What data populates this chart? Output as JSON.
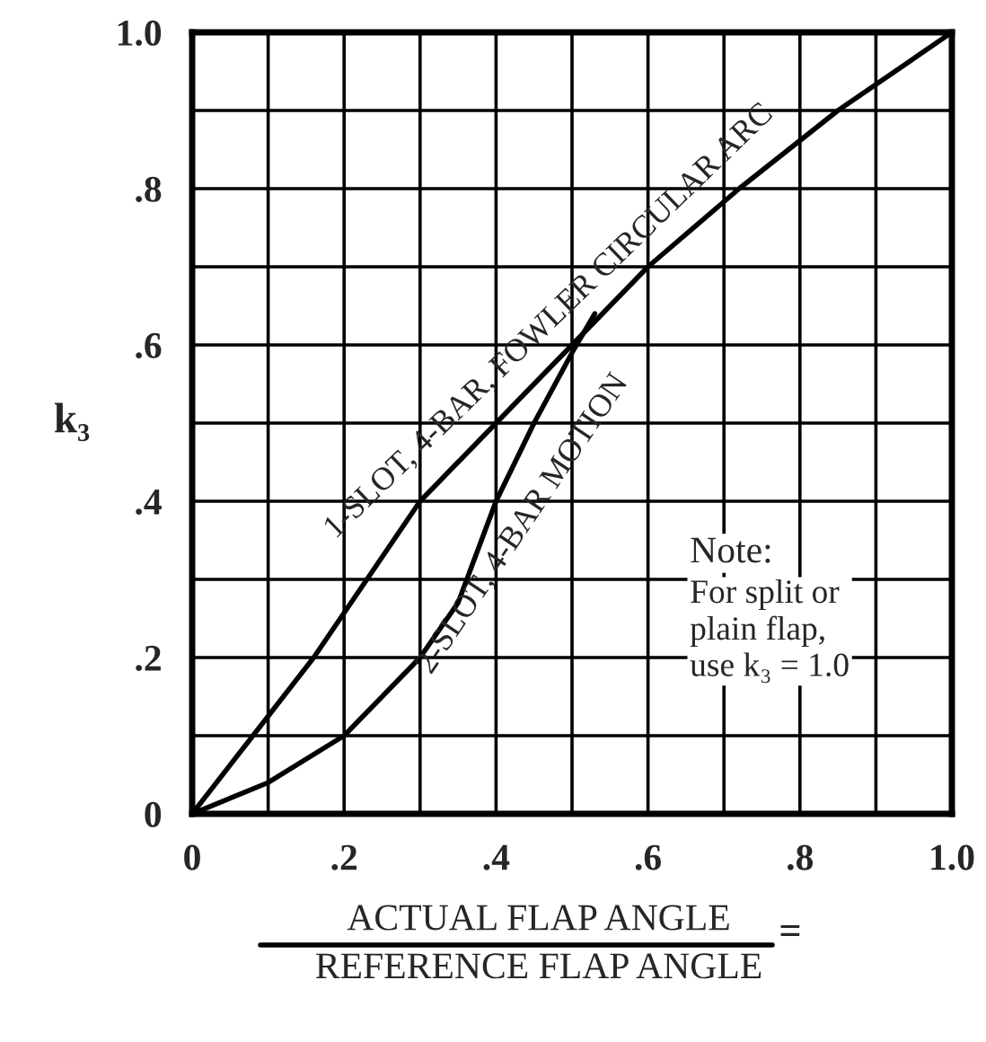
{
  "chart_data": {
    "type": "line",
    "xlabel": "ACTUAL FLAP ANGLE\nREFERENCE FLAP ANGLE",
    "ylabel": "k₃",
    "series": [
      {
        "color": "#000000",
        "x": [
          0,
          0.08,
          0.16,
          0.23,
          0.3,
          0.4,
          0.5,
          0.6,
          0.72,
          0.85,
          1.0
        ],
        "values": [
          0,
          0.1,
          0.2,
          0.3,
          0.4,
          0.5,
          0.6,
          0.7,
          0.8,
          0.9,
          1.0
        ]
      },
      {
        "color": "#000000",
        "x": [
          0,
          0.1,
          0.2,
          0.3,
          0.35,
          0.4,
          0.45,
          0.5,
          0.53
        ],
        "values": [
          0,
          0.04,
          0.1,
          0.2,
          0.27,
          0.4,
          0.5,
          0.59,
          0.64
        ]
      }
    ],
    "annotations": [
      {
        "text": "1-SLOT, 4-BAR, FOWLER CIRCULAR ARC",
        "x": 0.5,
        "y": 0.6
      },
      {
        "text": "2-SLOT, 4-BAR MOTION",
        "x": 0.4,
        "y": 0.4
      },
      "Note:",
      "For split or\nplain flap,\nuse k₃ = 1.0",
      "="
    ],
    "xlim": [
      0,
      1.0
    ],
    "ylim": [
      0,
      1.0
    ],
    "xticks": [
      0,
      {
        "value": 0.1,
        "label": null
      },
      {
        "value": 0.2,
        "label": ".2"
      },
      {
        "value": 0.3,
        "label": null
      },
      {
        "value": 0.4,
        "label": ".4"
      },
      {
        "value": 0.5,
        "label": null
      },
      {
        "value": 0.6,
        "label": ".6"
      },
      {
        "value": 0.7,
        "label": null
      },
      {
        "value": 0.8,
        "label": ".8"
      },
      {
        "value": 0.9,
        "label": null
      },
      {
        "value": 1.0,
        "label": "1.0"
      }
    ],
    "yticks": [
      0,
      {
        "value": 0.1,
        "label": null
      },
      {
        "value": 0.2,
        "label": ".2"
      },
      {
        "value": 0.3,
        "label": null
      },
      {
        "value": 0.4,
        "label": ".4"
      },
      {
        "value": 0.5,
        "label": null
      },
      {
        "value": 0.6,
        "label": ".6"
      },
      {
        "value": 0.7,
        "label": null
      },
      {
        "value": 0.8,
        "label": ".8"
      },
      {
        "value": 0.9,
        "label": null
      },
      {
        "value": 1.0,
        "label": "1.0"
      }
    ],
    "grid": true,
    "line_style": "solid",
    "marker": "none"
  }
}
